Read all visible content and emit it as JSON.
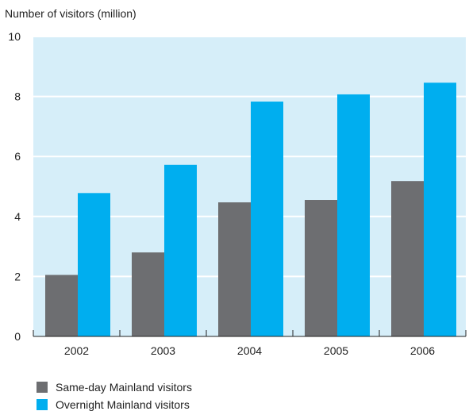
{
  "chart_data": {
    "type": "bar",
    "ylabel": "Number of visitors (million)",
    "categories": [
      "2002",
      "2003",
      "2004",
      "2005",
      "2006"
    ],
    "series": [
      {
        "name": "Same-day Mainland visitors",
        "values": [
          2.05,
          2.8,
          4.47,
          4.55,
          5.18
        ],
        "color": "#6d6e71"
      },
      {
        "name": "Overnight Mainland visitors",
        "values": [
          4.78,
          5.72,
          7.83,
          8.07,
          8.46
        ],
        "color": "#00aeef"
      }
    ],
    "ylim": [
      0,
      10
    ],
    "yticks": [
      0,
      2,
      4,
      6,
      8,
      10
    ],
    "grid": true,
    "plot_background": "#d6eef9",
    "legend_position": "bottom-left"
  }
}
